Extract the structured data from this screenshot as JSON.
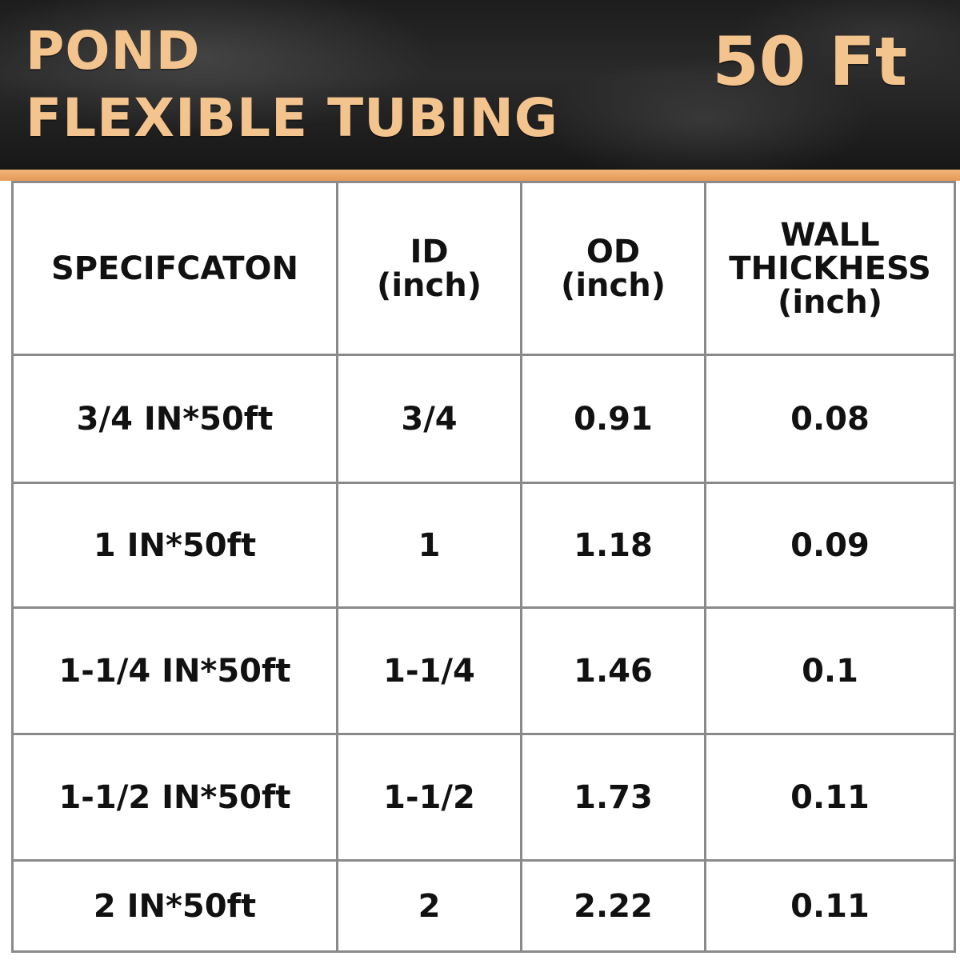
{
  "banner": {
    "title_line1": "POND",
    "title_line2": "FLEXIBLE TUBING",
    "length": "50 Ft",
    "colors": {
      "accent": "#f4c48e",
      "stripe": "#e59a58",
      "background": "#1d1d1d"
    }
  },
  "table": {
    "headers": {
      "spec": "SPECIFCATON",
      "id_line1": "ID",
      "id_line2": "(inch)",
      "od_line1": "OD",
      "od_line2": "(inch)",
      "wall_line1": "WALL",
      "wall_line2": "THICKHESS",
      "wall_line3": "(inch)"
    },
    "rows": [
      {
        "spec": "3/4 IN*50ft",
        "id": "3/4",
        "od": "0.91",
        "wall": "0.08"
      },
      {
        "spec": "1 IN*50ft",
        "id": "1",
        "od": "1.18",
        "wall": "0.09"
      },
      {
        "spec": "1-1/4 IN*50ft",
        "id": "1-1/4",
        "od": "1.46",
        "wall": "0.1"
      },
      {
        "spec": "1-1/2 IN*50ft",
        "id": "1-1/2",
        "od": "1.73",
        "wall": "0.11"
      },
      {
        "spec": "2 IN*50ft",
        "id": "2",
        "od": "2.22",
        "wall": "0.11"
      }
    ]
  }
}
